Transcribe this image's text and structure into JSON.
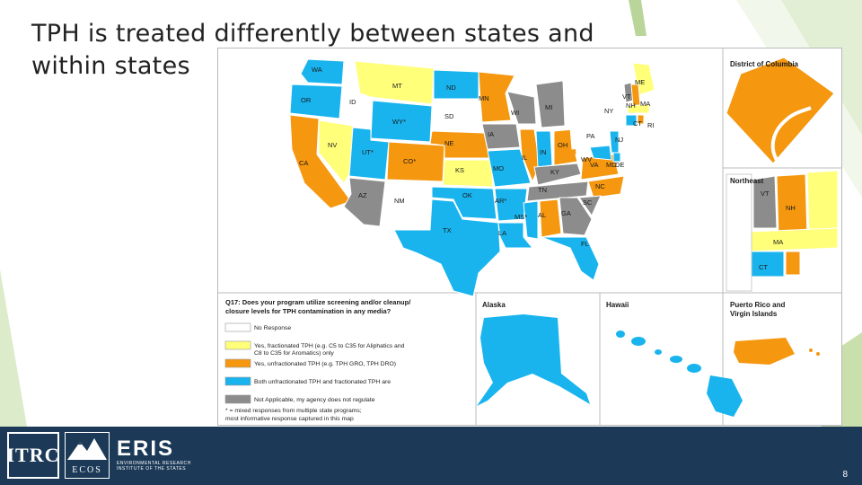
{
  "slide": {
    "title": "TPH is treated differently between states and within states",
    "page_number": "8"
  },
  "map": {
    "panels": {
      "dc": "District of Columbia",
      "northeast": "Northeast",
      "alaska": "Alaska",
      "hawaii": "Hawaii",
      "pr": "Puerto Rico and Virgin Islands"
    },
    "legend": {
      "question_line1": "Q17: Does your program utilize screening and/or cleanup/",
      "question_line2": "closure levels for TPH contamination in any media?",
      "items": [
        {
          "label": "No Response",
          "color": "#ffffff"
        },
        {
          "label": "Yes, fractionated TPH (e.g. C5 to C35 for Aliphatics and C8 to C35 for Aromatics) only",
          "color": "#ffff7a"
        },
        {
          "label": "Yes, unfractionated TPH (e.g. TPH GRO, TPH DRO)",
          "color": "#f5970f"
        },
        {
          "label": "Both unfractionated TPH and fractionated TPH are",
          "color": "#19b4ee"
        },
        {
          "label": "Not Applicable, my agency does not regulate",
          "color": "#8c8c8c"
        }
      ],
      "note_line1": "* = mixed responses from multiple state programs;",
      "note_line2": "most informative response captured in this map"
    },
    "states": [
      {
        "label": "WA",
        "color": "#19b4ee"
      },
      {
        "label": "OR",
        "color": "#19b4ee"
      },
      {
        "label": "CA",
        "color": "#f5970f"
      },
      {
        "label": "ID",
        "color": "#ffffff"
      },
      {
        "label": "NV",
        "color": "#ffff7a"
      },
      {
        "label": "MT",
        "color": "#ffff7a"
      },
      {
        "label": "WY*",
        "color": "#19b4ee"
      },
      {
        "label": "UT*",
        "color": "#19b4ee"
      },
      {
        "label": "AZ",
        "color": "#8c8c8c"
      },
      {
        "label": "CO*",
        "color": "#f5970f"
      },
      {
        "label": "NM",
        "color": "#ffffff"
      },
      {
        "label": "ND",
        "color": "#19b4ee"
      },
      {
        "label": "SD",
        "color": "#ffffff"
      },
      {
        "label": "NE",
        "color": "#f5970f"
      },
      {
        "label": "KS",
        "color": "#ffff7a"
      },
      {
        "label": "OK",
        "color": "#19b4ee"
      },
      {
        "label": "TX",
        "color": "#19b4ee"
      },
      {
        "label": "MN",
        "color": "#f5970f"
      },
      {
        "label": "IA",
        "color": "#8c8c8c"
      },
      {
        "label": "MO",
        "color": "#19b4ee"
      },
      {
        "label": "AR*",
        "color": "#19b4ee"
      },
      {
        "label": "LA",
        "color": "#19b4ee"
      },
      {
        "label": "WI",
        "color": "#8c8c8c"
      },
      {
        "label": "IL",
        "color": "#f5970f"
      },
      {
        "label": "MS*",
        "color": "#19b4ee"
      },
      {
        "label": "MI",
        "color": "#8c8c8c"
      },
      {
        "label": "IN",
        "color": "#19b4ee"
      },
      {
        "label": "KY",
        "color": "#8c8c8c"
      },
      {
        "label": "TN",
        "color": "#8c8c8c"
      },
      {
        "label": "AL",
        "color": "#f5970f"
      },
      {
        "label": "GA",
        "color": "#8c8c8c"
      },
      {
        "label": "FL",
        "color": "#19b4ee"
      },
      {
        "label": "OH",
        "color": "#f5970f"
      },
      {
        "label": "WV",
        "color": "#ffffff"
      },
      {
        "label": "VA",
        "color": "#f5970f"
      },
      {
        "label": "NC",
        "color": "#f5970f"
      },
      {
        "label": "SC",
        "color": "#8c8c8c"
      },
      {
        "label": "PA",
        "color": "#ffffff"
      },
      {
        "label": "NY",
        "color": "#ffffff"
      },
      {
        "label": "ME",
        "color": "#ffff7a"
      },
      {
        "label": "VT",
        "color": "#8c8c8c"
      },
      {
        "label": "NH",
        "color": "#f5970f"
      },
      {
        "label": "MA",
        "color": "#ffff7a"
      },
      {
        "label": "CT",
        "color": "#19b4ee"
      },
      {
        "label": "RI",
        "color": "#f5970f"
      },
      {
        "label": "NJ",
        "color": "#19b4ee"
      },
      {
        "label": "DE",
        "color": "#19b4ee"
      },
      {
        "label": "MD",
        "color": "#19b4ee"
      }
    ]
  },
  "footer": {
    "logo1": "ITRC",
    "logo2": "ECOS",
    "logo3": "ERIS",
    "logo3_sub": "ENVIRONMENTAL RESEARCH INSTITUTE OF THE STATES"
  }
}
